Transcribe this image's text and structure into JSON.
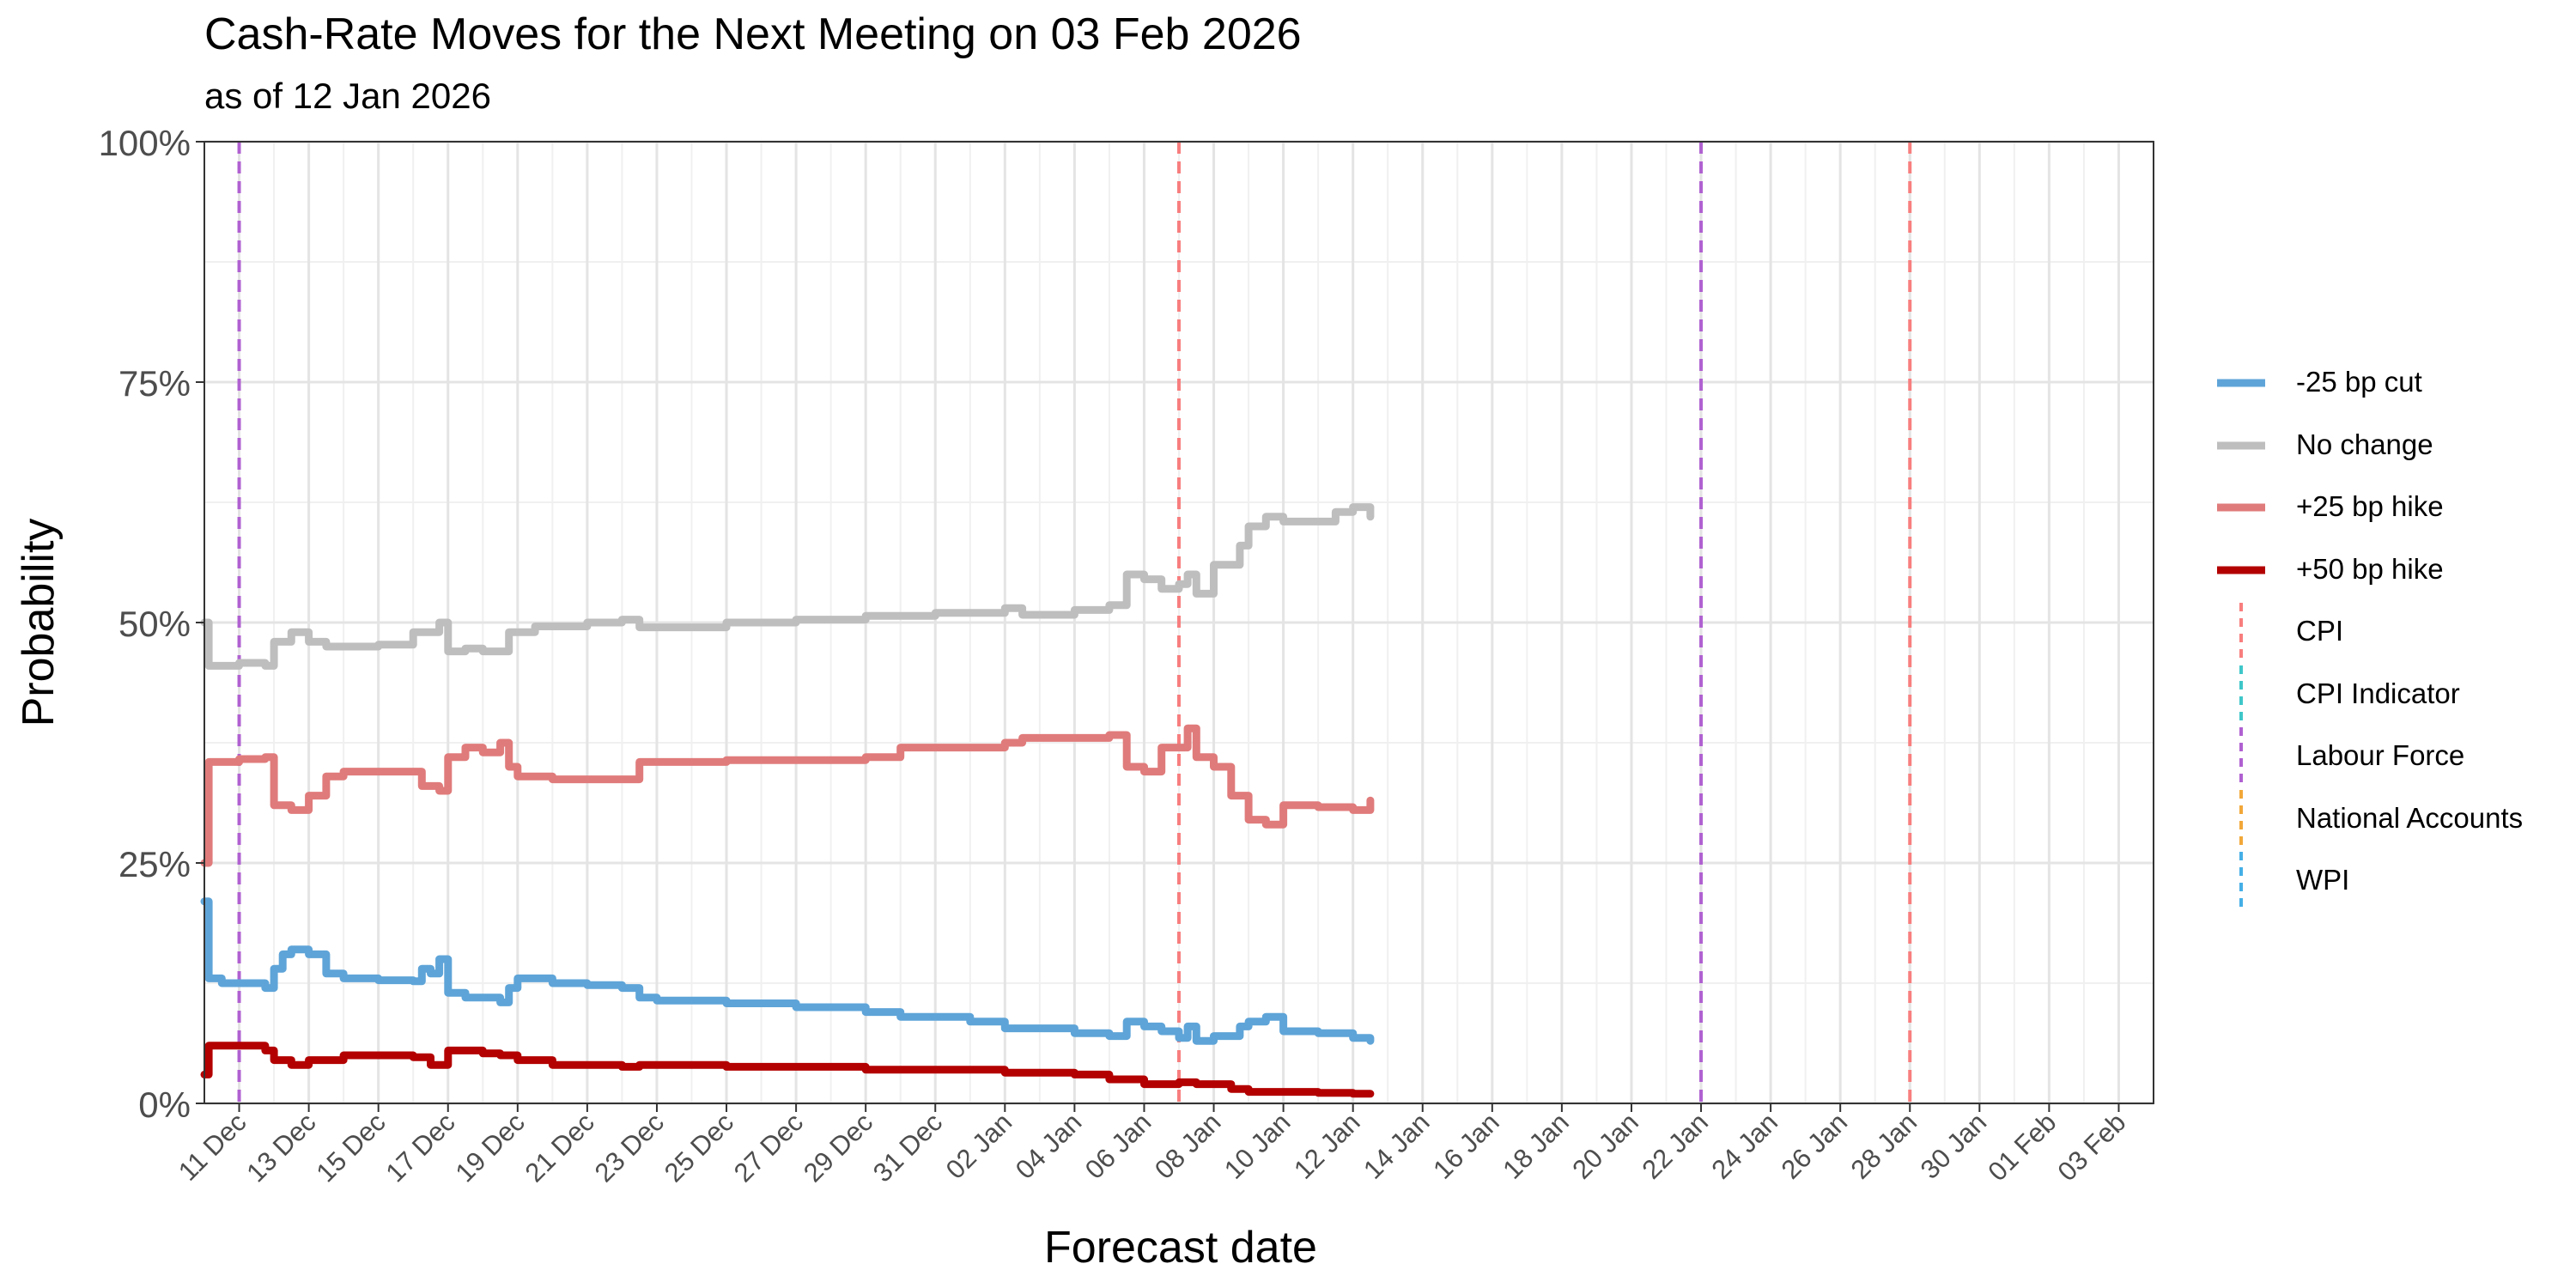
{
  "chart_data": {
    "type": "line",
    "title": "Cash-Rate Moves for the Next Meeting on 03 Feb 2026",
    "subtitle": "as of 12 Jan 2026",
    "xlabel": "Forecast date",
    "ylabel": "Probability",
    "x_range": [
      "2025-12-10",
      "2026-02-04"
    ],
    "y_range": [
      0,
      1
    ],
    "y_ticks": [
      0,
      0.25,
      0.5,
      0.75,
      1
    ],
    "y_tick_labels": [
      "0%",
      "25%",
      "50%",
      "75%",
      "100%"
    ],
    "x_ticks": [
      "2025-12-11",
      "2025-12-13",
      "2025-12-15",
      "2025-12-17",
      "2025-12-19",
      "2025-12-21",
      "2025-12-23",
      "2025-12-25",
      "2025-12-27",
      "2025-12-29",
      "2025-12-31",
      "2026-01-02",
      "2026-01-04",
      "2026-01-06",
      "2026-01-08",
      "2026-01-10",
      "2026-01-12",
      "2026-01-14",
      "2026-01-16",
      "2026-01-18",
      "2026-01-20",
      "2026-01-22",
      "2026-01-24",
      "2026-01-26",
      "2026-01-28",
      "2026-01-30",
      "2026-02-01",
      "2026-02-03"
    ],
    "x_tick_labels": [
      "11 Dec",
      "13 Dec",
      "15 Dec",
      "17 Dec",
      "19 Dec",
      "21 Dec",
      "23 Dec",
      "25 Dec",
      "27 Dec",
      "29 Dec",
      "31 Dec",
      "02 Jan",
      "04 Jan",
      "06 Jan",
      "08 Jan",
      "10 Jan",
      "12 Jan",
      "14 Jan",
      "16 Jan",
      "18 Jan",
      "20 Jan",
      "22 Jan",
      "24 Jan",
      "26 Jan",
      "28 Jan",
      "30 Jan",
      "01 Feb",
      "03 Feb"
    ],
    "grid": true,
    "legend_position": "right",
    "series": [
      {
        "name": "-25 bp cut",
        "color": "#5ea4d8",
        "points": [
          [
            "2025-12-10T00:00",
            0.21
          ],
          [
            "2025-12-10T03:00",
            0.13
          ],
          [
            "2025-12-10T12:00",
            0.125
          ],
          [
            "2025-12-11T12:00",
            0.125
          ],
          [
            "2025-12-11T18:00",
            0.12
          ],
          [
            "2025-12-12T00:00",
            0.14
          ],
          [
            "2025-12-12T06:00",
            0.155
          ],
          [
            "2025-12-12T12:00",
            0.16
          ],
          [
            "2025-12-13T00:00",
            0.155
          ],
          [
            "2025-12-13T12:00",
            0.135
          ],
          [
            "2025-12-14T00:00",
            0.13
          ],
          [
            "2025-12-15T00:00",
            0.128
          ],
          [
            "2025-12-16T00:00",
            0.127
          ],
          [
            "2025-12-16T06:00",
            0.14
          ],
          [
            "2025-12-16T12:00",
            0.135
          ],
          [
            "2025-12-16T18:00",
            0.15
          ],
          [
            "2025-12-17T00:00",
            0.115
          ],
          [
            "2025-12-17T12:00",
            0.11
          ],
          [
            "2025-12-18T00:00",
            0.11
          ],
          [
            "2025-12-18T12:00",
            0.105
          ],
          [
            "2025-12-18T18:00",
            0.12
          ],
          [
            "2025-12-19T00:00",
            0.13
          ],
          [
            "2025-12-20T00:00",
            0.125
          ],
          [
            "2025-12-21T00:00",
            0.123
          ],
          [
            "2025-12-22T00:00",
            0.12
          ],
          [
            "2025-12-22T12:00",
            0.11
          ],
          [
            "2025-12-23T00:00",
            0.107
          ],
          [
            "2025-12-25T00:00",
            0.104
          ],
          [
            "2025-12-27T00:00",
            0.1
          ],
          [
            "2025-12-29T00:00",
            0.095
          ],
          [
            "2025-12-30T00:00",
            0.09
          ],
          [
            "2026-01-01T00:00",
            0.085
          ],
          [
            "2026-01-02T00:00",
            0.078
          ],
          [
            "2026-01-04T00:00",
            0.073
          ],
          [
            "2026-01-05T00:00",
            0.07
          ],
          [
            "2026-01-05T12:00",
            0.085
          ],
          [
            "2026-01-06T00:00",
            0.08
          ],
          [
            "2026-01-06T12:00",
            0.075
          ],
          [
            "2026-01-07T00:00",
            0.068
          ],
          [
            "2026-01-07T06:00",
            0.08
          ],
          [
            "2026-01-07T12:00",
            0.065
          ],
          [
            "2026-01-08T00:00",
            0.07
          ],
          [
            "2026-01-08T18:00",
            0.08
          ],
          [
            "2026-01-09T00:00",
            0.085
          ],
          [
            "2026-01-09T12:00",
            0.09
          ],
          [
            "2026-01-10T00:00",
            0.075
          ],
          [
            "2026-01-11T00:00",
            0.073
          ],
          [
            "2026-01-12T00:00",
            0.068
          ],
          [
            "2026-01-12T12:00",
            0.065
          ]
        ]
      },
      {
        "name": "No change",
        "color": "#bebebe",
        "points": [
          [
            "2025-12-10T00:00",
            0.5
          ],
          [
            "2025-12-10T03:00",
            0.455
          ],
          [
            "2025-12-11T00:00",
            0.458
          ],
          [
            "2025-12-11T18:00",
            0.455
          ],
          [
            "2025-12-12T00:00",
            0.48
          ],
          [
            "2025-12-12T12:00",
            0.49
          ],
          [
            "2025-12-13T00:00",
            0.48
          ],
          [
            "2025-12-13T12:00",
            0.475
          ],
          [
            "2025-12-15T00:00",
            0.477
          ],
          [
            "2025-12-16T00:00",
            0.49
          ],
          [
            "2025-12-16T18:00",
            0.5
          ],
          [
            "2025-12-17T00:00",
            0.47
          ],
          [
            "2025-12-17T12:00",
            0.473
          ],
          [
            "2025-12-18T00:00",
            0.47
          ],
          [
            "2025-12-18T18:00",
            0.49
          ],
          [
            "2025-12-19T12:00",
            0.496
          ],
          [
            "2025-12-21T00:00",
            0.5
          ],
          [
            "2025-12-22T00:00",
            0.503
          ],
          [
            "2025-12-22T12:00",
            0.495
          ],
          [
            "2025-12-25T00:00",
            0.5
          ],
          [
            "2025-12-27T00:00",
            0.503
          ],
          [
            "2025-12-29T00:00",
            0.507
          ],
          [
            "2025-12-31T00:00",
            0.51
          ],
          [
            "2026-01-02T00:00",
            0.515
          ],
          [
            "2026-01-02T12:00",
            0.508
          ],
          [
            "2026-01-04T00:00",
            0.513
          ],
          [
            "2026-01-05T00:00",
            0.518
          ],
          [
            "2026-01-05T12:00",
            0.55
          ],
          [
            "2026-01-06T00:00",
            0.545
          ],
          [
            "2026-01-06T12:00",
            0.535
          ],
          [
            "2026-01-07T00:00",
            0.54
          ],
          [
            "2026-01-07T06:00",
            0.55
          ],
          [
            "2026-01-07T12:00",
            0.53
          ],
          [
            "2026-01-08T00:00",
            0.56
          ],
          [
            "2026-01-08T18:00",
            0.58
          ],
          [
            "2026-01-09T00:00",
            0.6
          ],
          [
            "2026-01-09T12:00",
            0.61
          ],
          [
            "2026-01-10T00:00",
            0.605
          ],
          [
            "2026-01-11T00:00",
            0.605
          ],
          [
            "2026-01-11T12:00",
            0.615
          ],
          [
            "2026-01-12T00:00",
            0.62
          ],
          [
            "2026-01-12T12:00",
            0.61
          ]
        ]
      },
      {
        "name": "+25 bp hike",
        "color": "#e07b7b",
        "points": [
          [
            "2025-12-10T00:00",
            0.25
          ],
          [
            "2025-12-10T03:00",
            0.355
          ],
          [
            "2025-12-11T00:00",
            0.358
          ],
          [
            "2025-12-11T18:00",
            0.36
          ],
          [
            "2025-12-12T00:00",
            0.31
          ],
          [
            "2025-12-12T12:00",
            0.305
          ],
          [
            "2025-12-13T00:00",
            0.32
          ],
          [
            "2025-12-13T12:00",
            0.34
          ],
          [
            "2025-12-14T00:00",
            0.345
          ],
          [
            "2025-12-16T00:00",
            0.345
          ],
          [
            "2025-12-16T06:00",
            0.33
          ],
          [
            "2025-12-16T18:00",
            0.325
          ],
          [
            "2025-12-17T00:00",
            0.36
          ],
          [
            "2025-12-17T12:00",
            0.37
          ],
          [
            "2025-12-18T00:00",
            0.365
          ],
          [
            "2025-12-18T12:00",
            0.375
          ],
          [
            "2025-12-18T18:00",
            0.35
          ],
          [
            "2025-12-19T00:00",
            0.34
          ],
          [
            "2025-12-20T00:00",
            0.337
          ],
          [
            "2025-12-22T00:00",
            0.337
          ],
          [
            "2025-12-22T12:00",
            0.355
          ],
          [
            "2025-12-25T00:00",
            0.357
          ],
          [
            "2025-12-29T00:00",
            0.36
          ],
          [
            "2025-12-30T00:00",
            0.37
          ],
          [
            "2026-01-02T00:00",
            0.375
          ],
          [
            "2026-01-02T12:00",
            0.38
          ],
          [
            "2026-01-05T00:00",
            0.383
          ],
          [
            "2026-01-05T12:00",
            0.35
          ],
          [
            "2026-01-06T00:00",
            0.345
          ],
          [
            "2026-01-06T12:00",
            0.37
          ],
          [
            "2026-01-07T00:00",
            0.37
          ],
          [
            "2026-01-07T06:00",
            0.39
          ],
          [
            "2026-01-07T12:00",
            0.36
          ],
          [
            "2026-01-08T00:00",
            0.35
          ],
          [
            "2026-01-08T12:00",
            0.32
          ],
          [
            "2026-01-09T00:00",
            0.295
          ],
          [
            "2026-01-09T12:00",
            0.29
          ],
          [
            "2026-01-10T00:00",
            0.31
          ],
          [
            "2026-01-11T00:00",
            0.308
          ],
          [
            "2026-01-12T00:00",
            0.305
          ],
          [
            "2026-01-12T12:00",
            0.315
          ]
        ]
      },
      {
        "name": "+50 bp hike",
        "color": "#b30000",
        "points": [
          [
            "2025-12-10T00:00",
            0.03
          ],
          [
            "2025-12-10T03:00",
            0.06
          ],
          [
            "2025-12-11T00:00",
            0.06
          ],
          [
            "2025-12-11T18:00",
            0.055
          ],
          [
            "2025-12-12T00:00",
            0.045
          ],
          [
            "2025-12-12T12:00",
            0.04
          ],
          [
            "2025-12-13T00:00",
            0.045
          ],
          [
            "2025-12-14T00:00",
            0.05
          ],
          [
            "2025-12-16T00:00",
            0.048
          ],
          [
            "2025-12-16T12:00",
            0.04
          ],
          [
            "2025-12-17T00:00",
            0.055
          ],
          [
            "2025-12-18T00:00",
            0.052
          ],
          [
            "2025-12-18T12:00",
            0.05
          ],
          [
            "2025-12-19T00:00",
            0.045
          ],
          [
            "2025-12-20T00:00",
            0.04
          ],
          [
            "2025-12-22T00:00",
            0.038
          ],
          [
            "2025-12-22T12:00",
            0.04
          ],
          [
            "2025-12-25T00:00",
            0.038
          ],
          [
            "2025-12-29T00:00",
            0.035
          ],
          [
            "2026-01-02T00:00",
            0.032
          ],
          [
            "2026-01-04T00:00",
            0.03
          ],
          [
            "2026-01-05T00:00",
            0.025
          ],
          [
            "2026-01-06T00:00",
            0.02
          ],
          [
            "2026-01-07T00:00",
            0.022
          ],
          [
            "2026-01-07T12:00",
            0.02
          ],
          [
            "2026-01-08T00:00",
            0.02
          ],
          [
            "2026-01-08T12:00",
            0.015
          ],
          [
            "2026-01-09T00:00",
            0.012
          ],
          [
            "2026-01-10T00:00",
            0.012
          ],
          [
            "2026-01-11T00:00",
            0.011
          ],
          [
            "2026-01-12T00:00",
            0.01
          ],
          [
            "2026-01-12T12:00",
            0.01
          ]
        ]
      }
    ],
    "events": [
      {
        "name": "CPI",
        "color": "#f87e7e",
        "dates": [
          "2026-01-07",
          "2026-01-28"
        ]
      },
      {
        "name": "CPI Indicator",
        "color": "#3fc7c9",
        "dates": []
      },
      {
        "name": "Labour Force",
        "color": "#b061d1",
        "dates": [
          "2025-12-11",
          "2026-01-22"
        ]
      },
      {
        "name": "National Accounts",
        "color": "#f2a839",
        "dates": []
      },
      {
        "name": "WPI",
        "color": "#45afe6",
        "dates": []
      }
    ]
  }
}
